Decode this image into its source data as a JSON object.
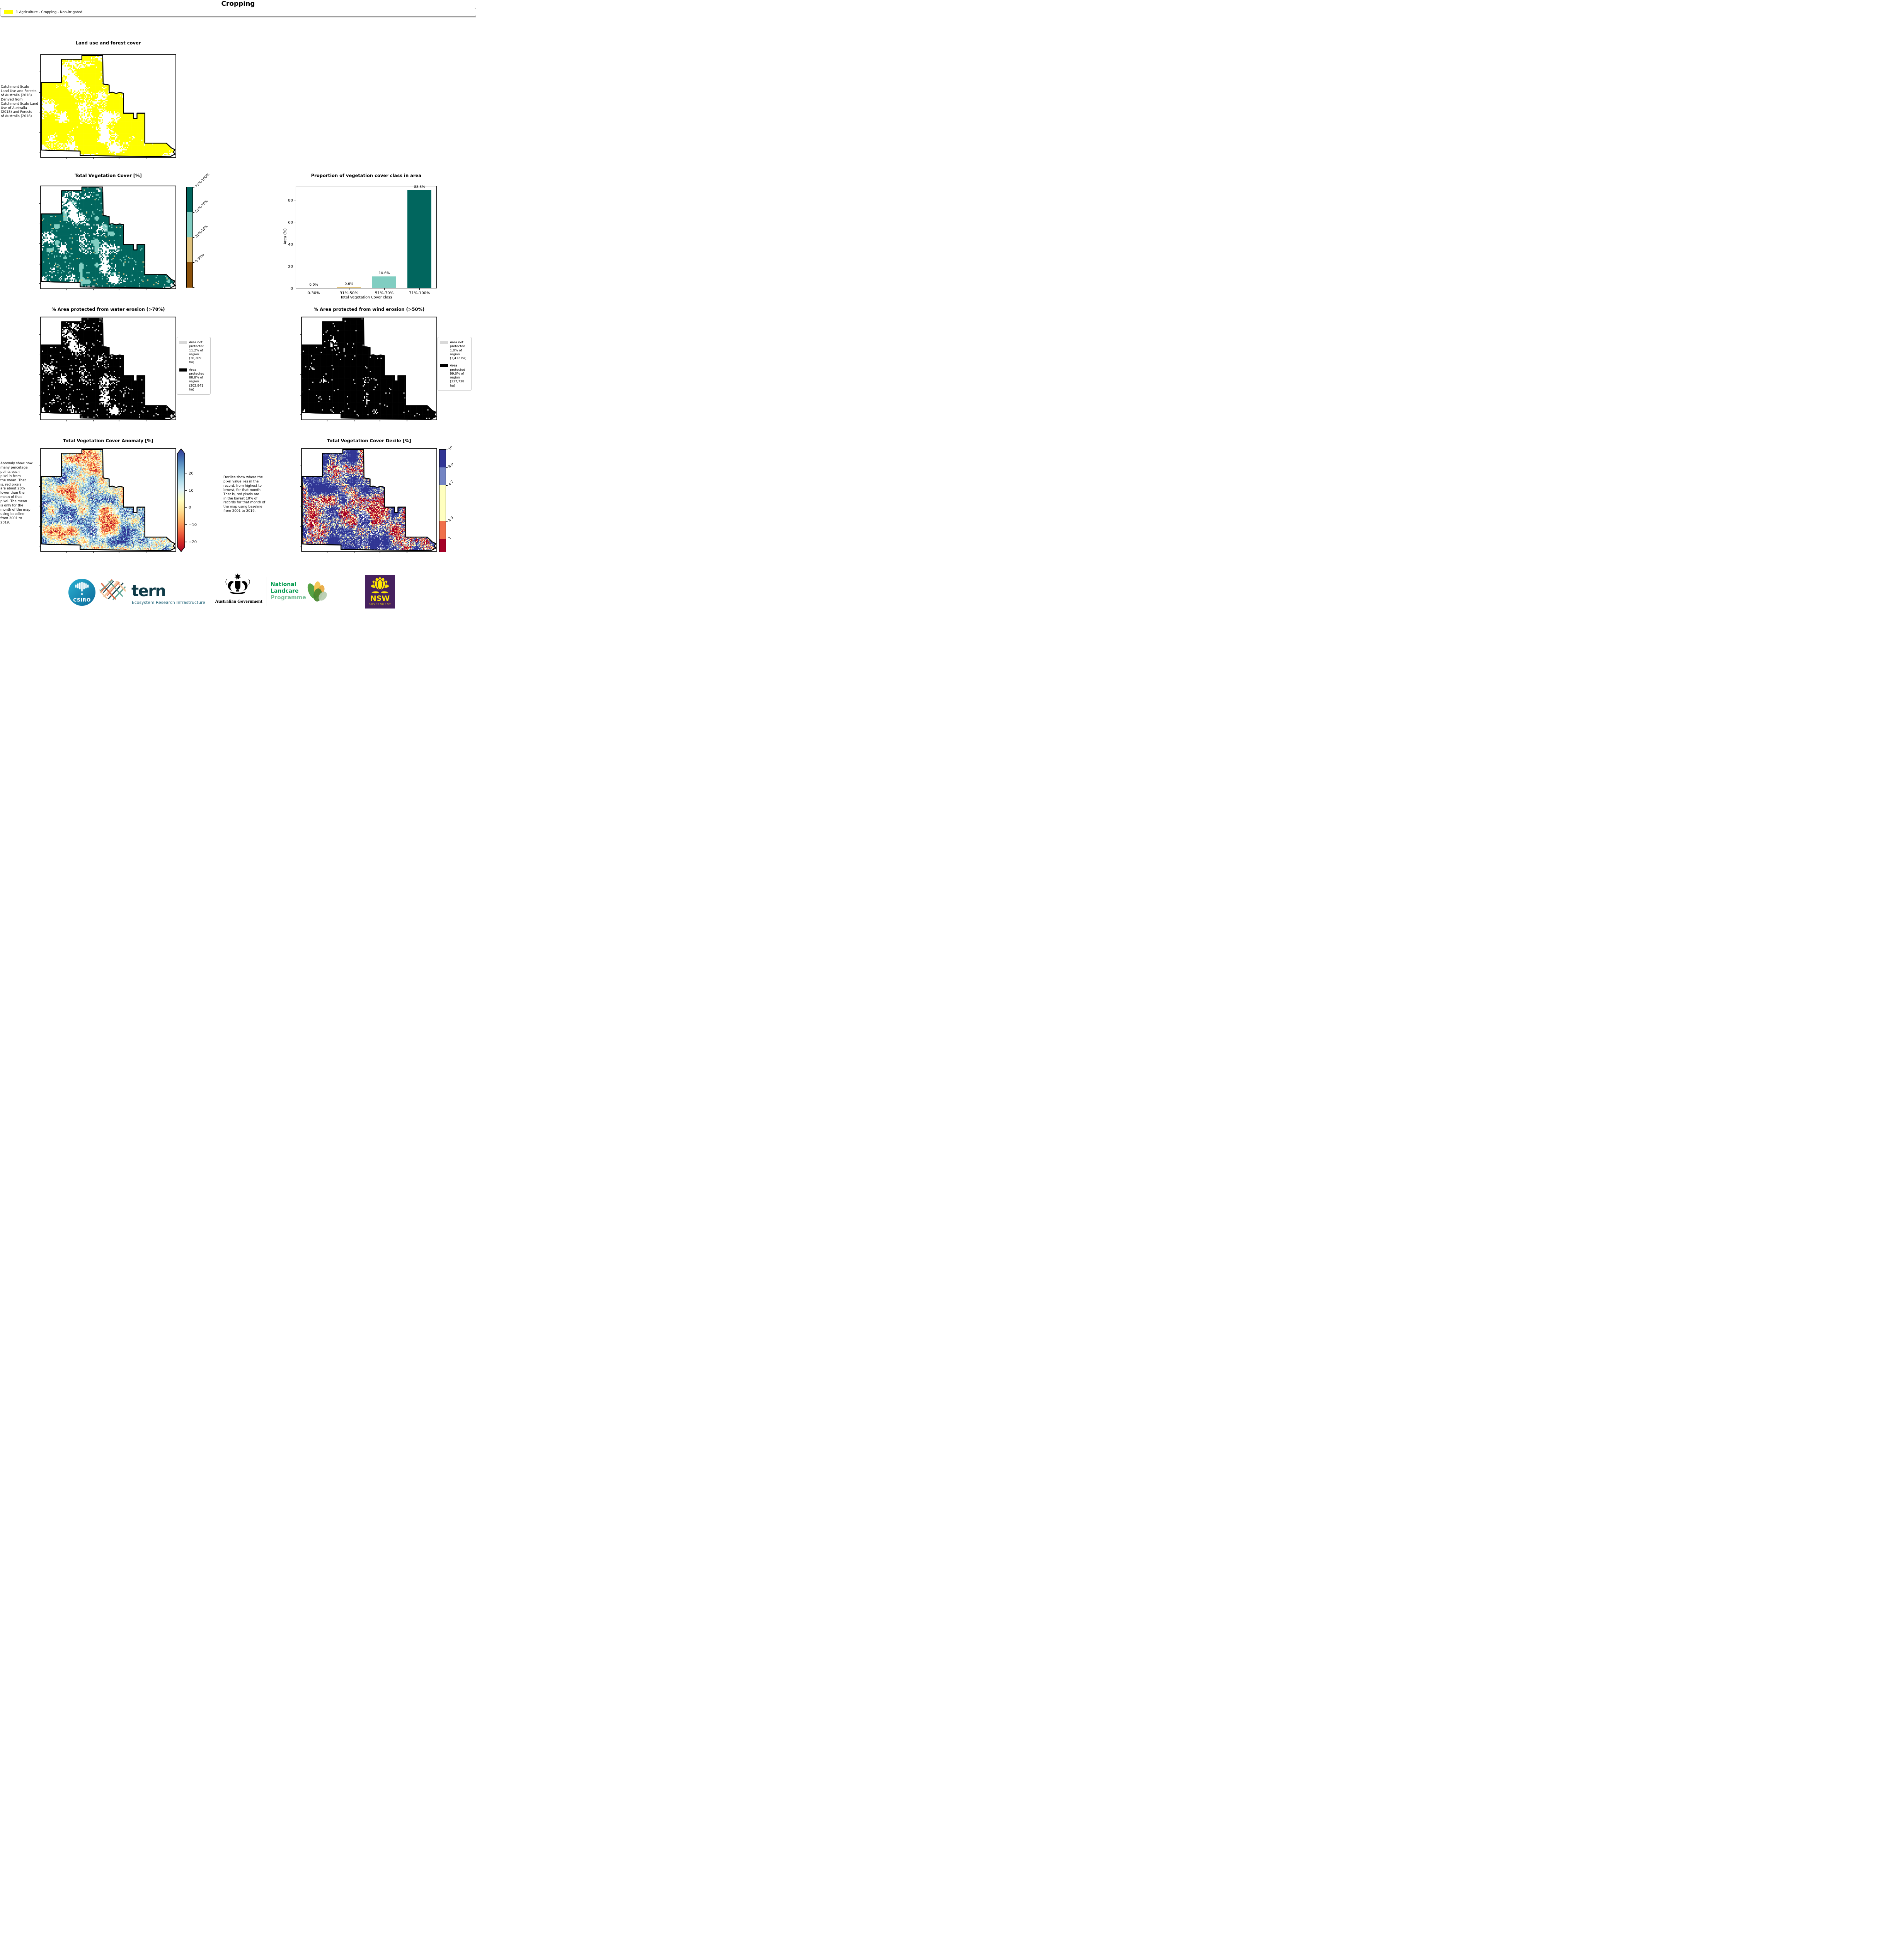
{
  "page_title": "Cropping",
  "panels": {
    "land_use": {
      "title": "Land use and forest cover",
      "side_note": " Catchment Scale\nLand Use and Forests\nof Australia (2018)\nDerived from\nCatchment Scale Land\nUse of Australia\n(2018) and Forests\nof Australia (2018)",
      "legend": {
        "swatch_color": "#ffff00",
        "label": "1 Agriculture - Cropping - Non-irrigated"
      }
    },
    "veg_cover": {
      "title": "Total Vegetation Cover [%]",
      "colorbar": {
        "labels": [
          "71%-100%",
          "51%-70%",
          "31%-50%",
          "0-30%"
        ],
        "colors": [
          "#01665e",
          "#80cdc1",
          "#dfc27d",
          "#8c510a"
        ]
      }
    },
    "water_erosion": {
      "title": "% Area protected from water erosion (>70%)",
      "legend": [
        {
          "color": "#d9d9d9",
          "label": "Area not\nprotected\n11.2% of\nregion\n(38,209\nha)"
        },
        {
          "color": "#000000",
          "label": "Area\nprotected\n88.8% of\nregion\n(302,941\nha)"
        }
      ]
    },
    "wind_erosion": {
      "title": "% Area protected from wind erosion (>50%)",
      "legend": [
        {
          "color": "#d9d9d9",
          "label": "Area not\nprotected\n1.0% of\nregion\n(3,412 ha)"
        },
        {
          "color": "#000000",
          "label": "Area\nprotected\n99.0% of\nregion\n(337,738\nha)"
        }
      ]
    },
    "anomaly": {
      "title": "Total Vegetation Cover Anomaly [%]",
      "side_note": "Anomaly show how\nmany percetage\npoints each\npixel is from\nthe mean. That\nis, red pixels\nare about 20%\nlower than the\nmean of that\npixel. The mean\nis only for the\nmonth of the map\nusing baseline\nfrom 2001 to\n2019.",
      "colorbar": {
        "ticks": [
          "20",
          "10",
          "0",
          "−10",
          "−20"
        ],
        "gradient": [
          "#313695",
          "#4575b4",
          "#74add1",
          "#abd9e9",
          "#e0f3f8",
          "#ffffbf",
          "#fee090",
          "#fdae61",
          "#f46d43",
          "#d73027",
          "#a50026"
        ]
      }
    },
    "decile": {
      "title": "Total Vegetation Cover Decile [%]",
      "side_note": "Deciles show where the\npixel value lies in the\nrecord, from highest to\nlowest, for that month.\nThat is, red pixels are\nin the lowest 10% of\nrecords for that month of\nthe map using baseline\nfrom 2001 to 2019.",
      "colorbar": {
        "labels": [
          "10",
          "8-9",
          "4-7",
          "2-3",
          "1"
        ],
        "colors": [
          "#313695",
          "#7485c4",
          "#ffffbf",
          "#f0704b",
          "#a50026"
        ]
      }
    }
  },
  "chart_data": {
    "type": "bar",
    "title": "Proportion of vegetation cover class in area",
    "categories": [
      "0-30%",
      "31%-50%",
      "51%-70%",
      "71%-100%"
    ],
    "values": [
      0.0,
      0.6,
      10.6,
      88.8
    ],
    "bar_labels": [
      "0.0%",
      "0.6%",
      "10.6%",
      "88.8%"
    ],
    "bar_colors": [
      "#8c510a",
      "#dfc27d",
      "#80cdc1",
      "#01665e"
    ],
    "xlabel": "Total Vegetation Cover class",
    "ylabel": "Area (%)",
    "ylim": [
      0,
      93
    ],
    "yticks": [
      0,
      20,
      40,
      60,
      80
    ],
    "grid": false,
    "legend_position": "none"
  },
  "footer": {
    "csiro_label": "CSIRO",
    "tern_name": "tern",
    "tern_tagline": "Ecosystem Research Infrastructure",
    "gov_label": "Australian Government",
    "landcare_line1": "National",
    "landcare_line2": "Landcare",
    "landcare_line3": "Programme",
    "nsw_name": "NSW",
    "nsw_sub": "GOVERNMENT"
  }
}
